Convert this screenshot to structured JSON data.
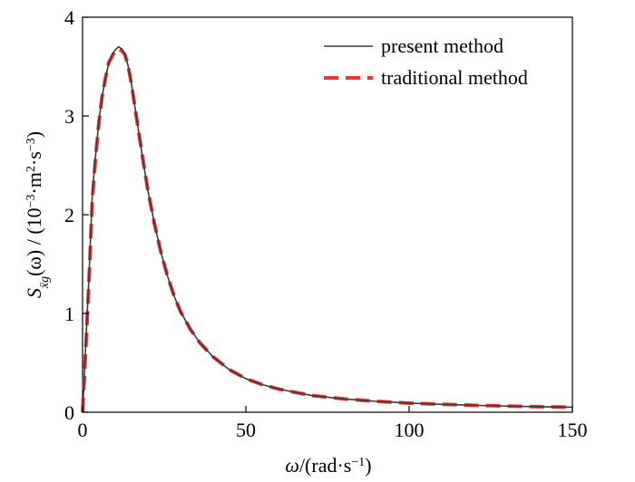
{
  "chart_data": {
    "type": "line",
    "xlim": [
      0,
      150
    ],
    "ylim": [
      0,
      4
    ],
    "x_ticks": [
      0,
      50,
      100,
      150
    ],
    "y_ticks": [
      0,
      1,
      2,
      3,
      4
    ],
    "x_tick_labels": [
      "0",
      "50",
      "100",
      "150"
    ],
    "y_tick_labels": [
      "0",
      "1",
      "2",
      "3",
      "4"
    ],
    "grid": false,
    "legend_position": "top-right",
    "xlabel": {
      "omega": "ω",
      "prefix": "/(rad·s",
      "exp": "−1",
      "suffix": ")"
    },
    "ylabel": {
      "S": "S",
      "sub": "ẍg",
      "arg": "(ω) / (10",
      "exp1": "−3",
      "mid": "·m",
      "exp2": "2",
      "mid2": "·s",
      "exp3": "−3",
      "suffix": ")"
    },
    "series": [
      {
        "name": "present method",
        "color": "#3a3a3a",
        "style": "solid",
        "x": [
          0,
          1,
          2,
          3,
          4,
          5,
          6,
          7,
          8,
          9,
          10,
          11,
          12,
          13,
          14,
          15,
          16,
          17,
          18,
          19,
          20,
          22,
          24,
          26,
          28,
          30,
          33,
          36,
          40,
          45,
          50,
          55,
          60,
          70,
          80,
          90,
          100,
          110,
          120,
          130,
          140,
          150
        ],
        "values": [
          0.0,
          0.7,
          1.4,
          2.22,
          2.6,
          2.95,
          3.2,
          3.38,
          3.53,
          3.62,
          3.67,
          3.7,
          3.68,
          3.62,
          3.5,
          3.32,
          3.1,
          2.88,
          2.66,
          2.45,
          2.25,
          1.91,
          1.62,
          1.38,
          1.18,
          1.02,
          0.84,
          0.7,
          0.56,
          0.43,
          0.34,
          0.28,
          0.235,
          0.17,
          0.135,
          0.11,
          0.092,
          0.08,
          0.07,
          0.062,
          0.056,
          0.051
        ]
      },
      {
        "name": "traditional method",
        "color": "#e8383d",
        "style": "dashed",
        "x": [
          0,
          1,
          2,
          3,
          4,
          5,
          6,
          7,
          8,
          9,
          10,
          11,
          12,
          13,
          14,
          15,
          16,
          17,
          18,
          19,
          20,
          22,
          24,
          26,
          28,
          30,
          33,
          36,
          40,
          45,
          50,
          55,
          60,
          70,
          80,
          90,
          100,
          110,
          120,
          130,
          140,
          150
        ],
        "values": [
          0.0,
          0.65,
          1.35,
          2.15,
          2.58,
          2.93,
          3.2,
          3.38,
          3.54,
          3.6,
          3.66,
          3.68,
          3.66,
          3.62,
          3.5,
          3.32,
          3.1,
          2.88,
          2.66,
          2.45,
          2.25,
          1.91,
          1.62,
          1.38,
          1.18,
          1.02,
          0.84,
          0.7,
          0.56,
          0.43,
          0.34,
          0.28,
          0.235,
          0.17,
          0.135,
          0.11,
          0.092,
          0.08,
          0.07,
          0.062,
          0.056,
          0.051
        ]
      }
    ]
  }
}
